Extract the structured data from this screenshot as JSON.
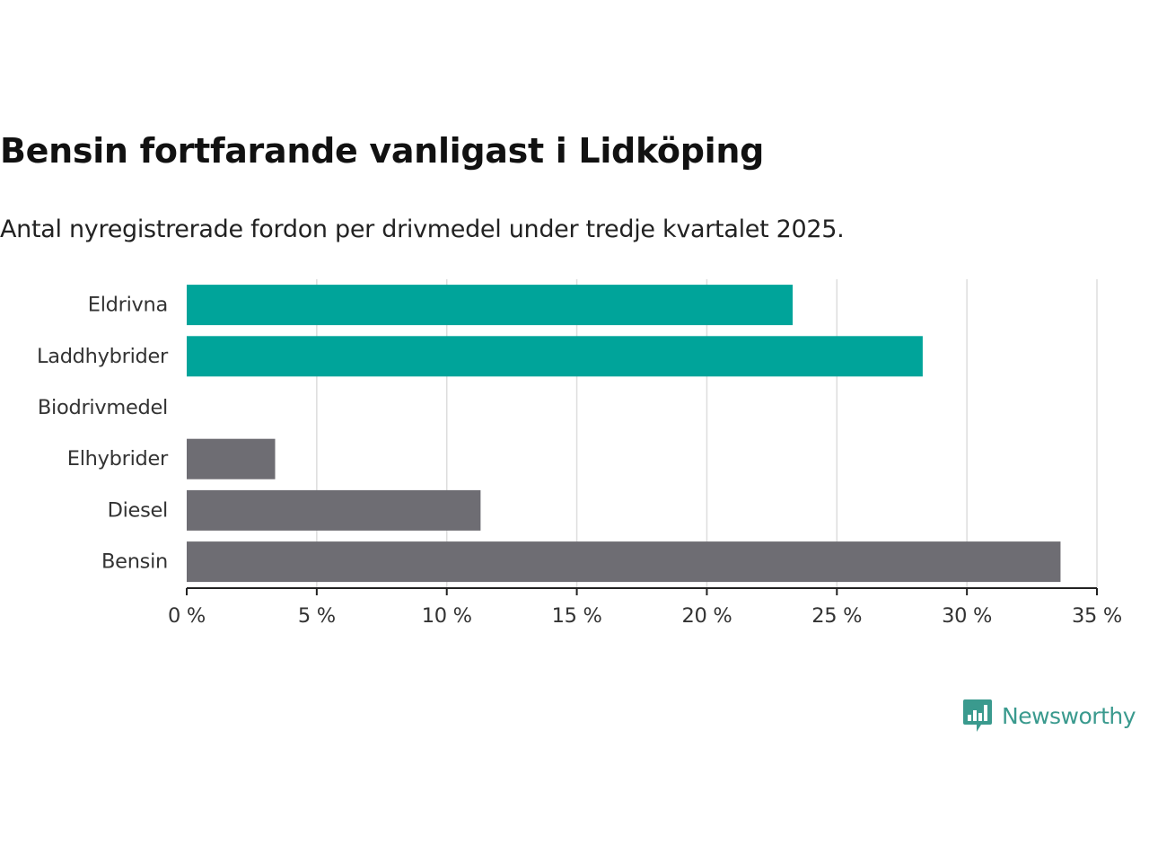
{
  "header": {
    "title": "Bensin fortfarande vanligast i Lidköping",
    "subtitle": "Antal nyregistrerade fordon per drivmedel under tredje kvartalet 2025."
  },
  "brand": {
    "name": "Newsworthy",
    "icon": "newsworthy-logo-icon",
    "color": "#3a9a8e"
  },
  "colors": {
    "highlight": "#00a49a",
    "neutral": "#6e6d73",
    "grid": "#dddddd",
    "axis": "#222222",
    "label": "#333333"
  },
  "chart_data": {
    "type": "bar",
    "orientation": "horizontal",
    "title": "Bensin fortfarande vanligast i Lidköping",
    "subtitle": "Antal nyregistrerade fordon per drivmedel under tredje kvartalet 2025.",
    "xlabel": "",
    "ylabel": "",
    "xlim": [
      0,
      35
    ],
    "grid": true,
    "legend": "none",
    "categories": [
      "Eldrivna",
      "Laddhybrider",
      "Biodrivmedel",
      "Elhybrider",
      "Diesel",
      "Bensin"
    ],
    "values": [
      23.3,
      28.3,
      0,
      3.4,
      11.3,
      33.6
    ],
    "bar_colors": [
      "highlight",
      "highlight",
      "neutral",
      "neutral",
      "neutral",
      "neutral"
    ],
    "x_ticks": [
      0,
      5,
      10,
      15,
      20,
      25,
      30,
      35
    ],
    "x_tick_labels": [
      "0 %",
      "5 %",
      "10 %",
      "15 %",
      "20 %",
      "25 %",
      "30 %",
      "35 %"
    ]
  }
}
